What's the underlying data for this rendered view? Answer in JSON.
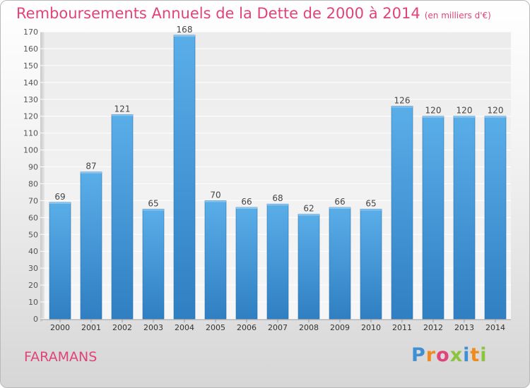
{
  "chart_data": {
    "type": "bar",
    "title": "Remboursements Annuels de la Dette de 2000 à 2014",
    "unit_note": "(en milliers d'€)",
    "categories": [
      "2000",
      "2001",
      "2002",
      "2003",
      "2004",
      "2005",
      "2006",
      "2007",
      "2008",
      "2009",
      "2010",
      "2011",
      "2012",
      "2013",
      "2014"
    ],
    "values": [
      69,
      87,
      121,
      65,
      168,
      70,
      66,
      68,
      62,
      66,
      65,
      126,
      120,
      120,
      120
    ],
    "yticks": [
      0,
      10,
      20,
      30,
      40,
      50,
      60,
      70,
      80,
      90,
      100,
      110,
      120,
      130,
      140,
      150,
      160,
      170
    ],
    "ylim": [
      0,
      170
    ],
    "xlabel": "",
    "ylabel": "",
    "grid": "horizontal",
    "bar_color": "#4a9ee0"
  },
  "footer": {
    "commune": "FARAMANS",
    "brand": "Proxiti",
    "brand_colors": [
      "#3f8fd2",
      "#f08a1c",
      "#e0437a",
      "#8cc43f",
      "#3f8fd2",
      "#f08a1c",
      "#8cc43f"
    ]
  }
}
